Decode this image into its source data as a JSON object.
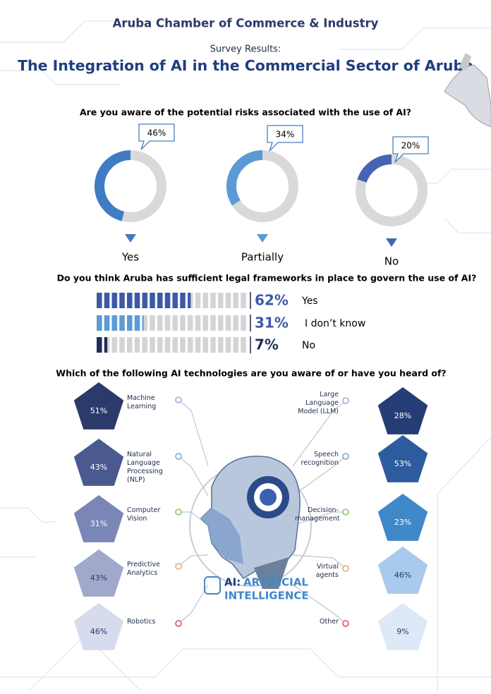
{
  "header": {
    "organization": "Aruba Chamber of Commerce & Industry",
    "subtitle": "Survey Results:",
    "title": "The Integration of AI in the Commercial Sector of Aruba"
  },
  "chart_data": [
    {
      "type": "donut",
      "title": "Are you aware of the potential risks associated with the use of AI?",
      "categories": [
        "Yes",
        "Partially",
        "No"
      ],
      "values": [
        46,
        34,
        20
      ],
      "value_labels": [
        "46%",
        "34%",
        "20%"
      ],
      "colors": [
        "#3f7cc2",
        "#5b9ad6",
        "#4565b2"
      ]
    },
    {
      "type": "bar",
      "title": "Do you think Aruba has sufficient legal frameworks in place to govern the use of AI?",
      "categories": [
        "Yes",
        "I don’t know",
        "No"
      ],
      "values": [
        62,
        31,
        7
      ],
      "value_labels": [
        "62%",
        "31%",
        "7%"
      ],
      "colors": [
        "#3d5aa6",
        "#5c9bd6",
        "#1f2d5c"
      ],
      "xlim": [
        0,
        100
      ]
    },
    {
      "type": "pentagon",
      "title": "Which of the following AI technologies are you aware of or have you heard of?",
      "categories": [
        "Machine Learning",
        "Natural Language Processing (NLP)",
        "Computer Vision",
        "Predictive Analytics",
        "Robotics",
        "Large Language Model (LLM)",
        "Speech recognition",
        "Decision-management",
        "Virtual agents",
        "Other"
      ],
      "values": [
        51,
        43,
        31,
        43,
        46,
        28,
        53,
        23,
        46,
        9
      ],
      "value_labels": [
        "51%",
        "43%",
        "31%",
        "43%",
        "46%",
        "28%",
        "53%",
        "23%",
        "46%",
        "9%"
      ],
      "colors": [
        "#2b3a6b",
        "#4a5a90",
        "#7a86b5",
        "#a0a9cc",
        "#d6dbee",
        "#263c75",
        "#2d5c9e",
        "#3f88ca",
        "#a8caec",
        "#dde9f6"
      ]
    }
  ],
  "illustration": {
    "prefix": "AI:",
    "line1": "ARTIFICIAL",
    "line2": "INTELLIGENCE"
  }
}
